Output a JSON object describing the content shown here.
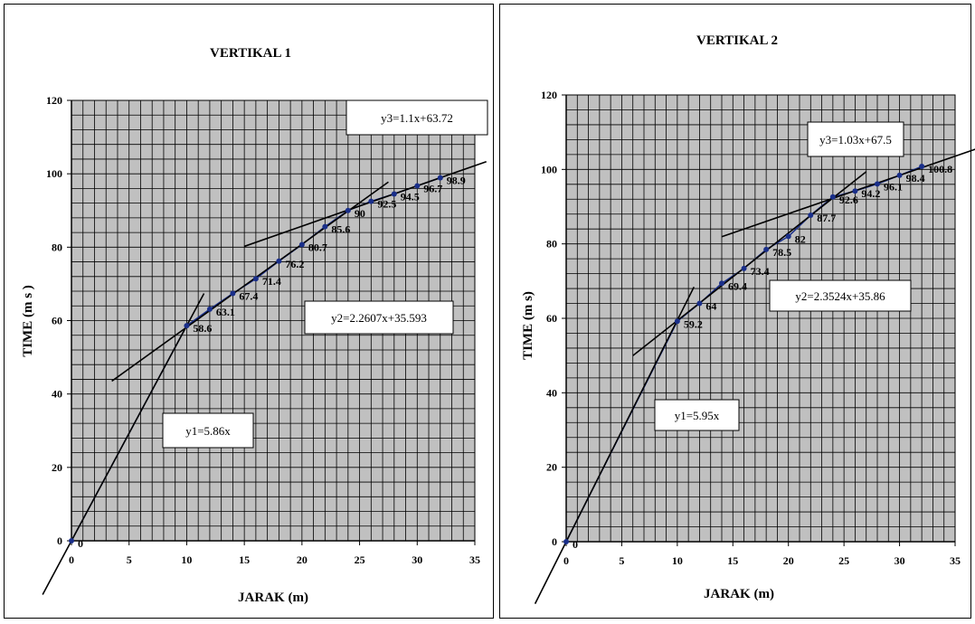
{
  "chart_data": [
    {
      "type": "scatter",
      "title": "VERTIKAL 1",
      "xlabel": "JARAK (m)",
      "ylabel": "TIME (m s )",
      "xlim": [
        0,
        35
      ],
      "ylim": [
        0,
        120
      ],
      "xticks": [
        "0",
        "5",
        "10",
        "15",
        "20",
        "25",
        "30",
        "35"
      ],
      "yticks": [
        "0",
        "20",
        "40",
        "60",
        "80",
        "100",
        "120"
      ],
      "grid": true,
      "point_color": "#1a2f8a",
      "plot_bg": "#c0c0c0",
      "points": [
        {
          "x": 0,
          "y": 0,
          "label": "0"
        },
        {
          "x": 10,
          "y": 58.6,
          "label": "58.6"
        },
        {
          "x": 12,
          "y": 63.1,
          "label": "63.1"
        },
        {
          "x": 14,
          "y": 67.4,
          "label": "67.4"
        },
        {
          "x": 16,
          "y": 71.4,
          "label": "71.4"
        },
        {
          "x": 18,
          "y": 76.2,
          "label": "76.2"
        },
        {
          "x": 20,
          "y": 80.7,
          "label": "80.7"
        },
        {
          "x": 22,
          "y": 85.6,
          "label": "85.6"
        },
        {
          "x": 24,
          "y": 90,
          "label": "90"
        },
        {
          "x": 26,
          "y": 92.5,
          "label": "92.5"
        },
        {
          "x": 28,
          "y": 94.5,
          "label": "94.5"
        },
        {
          "x": 30,
          "y": 96.7,
          "label": "96.7"
        },
        {
          "x": 32,
          "y": 98.9,
          "label": "98.9"
        }
      ],
      "fits": [
        {
          "equation": "y1=5.86x",
          "slope": 5.86,
          "intercept": 0,
          "x_range": [
            -2.5,
            11.5
          ]
        },
        {
          "equation": "y2=2.2607x+35.593",
          "slope": 2.2607,
          "intercept": 35.593,
          "x_range": [
            3.5,
            27.5
          ]
        },
        {
          "equation": "y3=1.1x+63.72",
          "slope": 1.1,
          "intercept": 63.72,
          "x_range": [
            15,
            36
          ]
        }
      ]
    },
    {
      "type": "scatter",
      "title": "VERTIKAL 2",
      "xlabel": "JARAK (m)",
      "ylabel": "TIME (m s)",
      "xlim": [
        0,
        35
      ],
      "ylim": [
        0,
        120
      ],
      "xticks": [
        "0",
        "5",
        "10",
        "15",
        "20",
        "25",
        "30",
        "35"
      ],
      "yticks": [
        "0",
        "20",
        "40",
        "60",
        "80",
        "100",
        "120"
      ],
      "grid": true,
      "point_color": "#1a2f8a",
      "plot_bg": "#c0c0c0",
      "points": [
        {
          "x": 0,
          "y": 0,
          "label": "0"
        },
        {
          "x": 10,
          "y": 59.2,
          "label": "59.2"
        },
        {
          "x": 12,
          "y": 64,
          "label": "64"
        },
        {
          "x": 14,
          "y": 69.4,
          "label": "69.4"
        },
        {
          "x": 16,
          "y": 73.4,
          "label": "73.4"
        },
        {
          "x": 18,
          "y": 78.5,
          "label": "78.5"
        },
        {
          "x": 20,
          "y": 82,
          "label": "82"
        },
        {
          "x": 22,
          "y": 87.7,
          "label": "87.7"
        },
        {
          "x": 24,
          "y": 92.6,
          "label": "92.6"
        },
        {
          "x": 26,
          "y": 94.2,
          "label": "94.2"
        },
        {
          "x": 28,
          "y": 96.1,
          "label": "96.1"
        },
        {
          "x": 30,
          "y": 98.4,
          "label": "98.4"
        },
        {
          "x": 32,
          "y": 100.8,
          "label": "100.8"
        }
      ],
      "fits": [
        {
          "equation": "y1=5.95x",
          "slope": 5.95,
          "intercept": 0,
          "x_range": [
            -2.8,
            11.5
          ]
        },
        {
          "equation": "y2=2.3524x+35.86",
          "slope": 2.3524,
          "intercept": 35.86,
          "x_range": [
            6,
            27
          ]
        },
        {
          "equation": "y3=1.03x+67.5",
          "slope": 1.03,
          "intercept": 67.5,
          "x_range": [
            14,
            37
          ]
        }
      ]
    }
  ]
}
